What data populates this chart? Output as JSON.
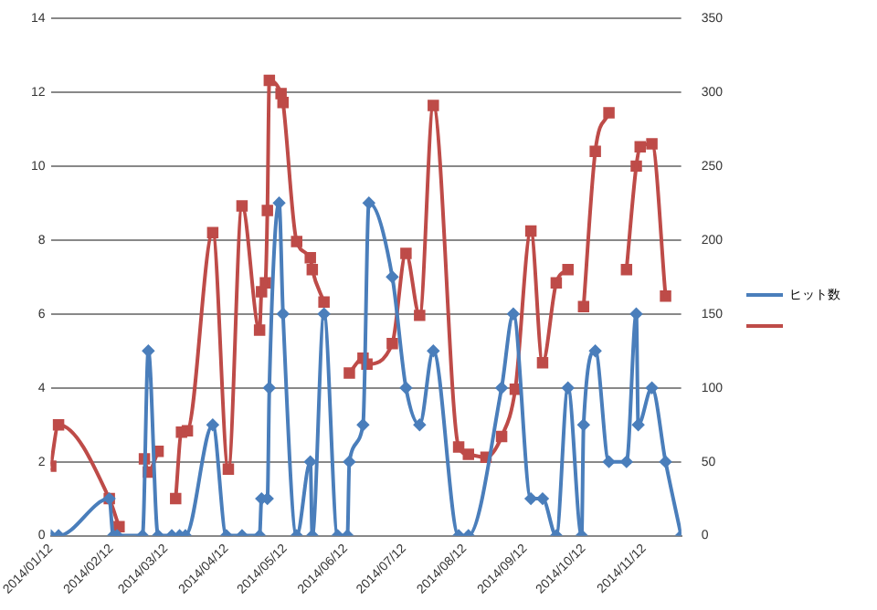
{
  "chart_data": {
    "type": "line",
    "xlim": [
      "2014-01-12",
      "2014-12-01"
    ],
    "xticks": [
      {
        "value": "2014-01-12",
        "label": "2014/01/12"
      },
      {
        "value": "2014-02-12",
        "label": "2014/02/12"
      },
      {
        "value": "2014-03-12",
        "label": "2014/03/12"
      },
      {
        "value": "2014-04-12",
        "label": "2014/04/12"
      },
      {
        "value": "2014-05-12",
        "label": "2014/05/12"
      },
      {
        "value": "2014-06-12",
        "label": "2014/06/12"
      },
      {
        "value": "2014-07-12",
        "label": "2014/07/12"
      },
      {
        "value": "2014-08-12",
        "label": "2014/08/12"
      },
      {
        "value": "2014-09-12",
        "label": "2014/09/12"
      },
      {
        "value": "2014-10-12",
        "label": "2014/10/12"
      },
      {
        "value": "2014-11-12",
        "label": "2014/11/12"
      }
    ],
    "ylim": [
      0,
      14
    ],
    "yticks": [
      0,
      2,
      4,
      6,
      8,
      10,
      12,
      14
    ],
    "y2lim": [
      0,
      350
    ],
    "y2ticks": [
      0,
      50,
      100,
      150,
      200,
      250,
      300,
      350
    ],
    "grid": "y",
    "legend": "right",
    "series": [
      {
        "name": "ヒット数",
        "color": "#4a7ebb",
        "marker": "diamond",
        "x": [
          "2014-01-12",
          "2014-01-16",
          "2014-02-11",
          "2014-02-13",
          "2014-02-15",
          "2014-02-28",
          "2014-03-03",
          "2014-03-08",
          "2014-03-15",
          "2014-03-19",
          "2014-03-22",
          "2014-04-05",
          "2014-04-12",
          "2014-04-20",
          "2014-04-29",
          "2014-04-30",
          "2014-05-03",
          "2014-05-04",
          "2014-05-09",
          "2014-05-11",
          "2014-05-18",
          "2014-05-25",
          "2014-05-26",
          "2014-06-01",
          "2014-06-08",
          "2014-06-13",
          "2014-06-14",
          "2014-06-21",
          "2014-06-24",
          "2014-07-06",
          "2014-07-13",
          "2014-07-20",
          "2014-07-27",
          "2014-08-09",
          "2014-08-14",
          "2014-08-31",
          "2014-09-06",
          "2014-09-15",
          "2014-09-21",
          "2014-09-28",
          "2014-10-04",
          "2014-10-11",
          "2014-10-12",
          "2014-10-18",
          "2014-10-25",
          "2014-11-03",
          "2014-11-08",
          "2014-11-09",
          "2014-11-16",
          "2014-11-23",
          "2014-12-01"
        ],
        "values": [
          0,
          0,
          1,
          0,
          0,
          0,
          5,
          0,
          0,
          0,
          0,
          3,
          0,
          0,
          0,
          1,
          1,
          4,
          9,
          6,
          0,
          2,
          0,
          6,
          0,
          0,
          2,
          3,
          9,
          7,
          4,
          3,
          5,
          0,
          0,
          4,
          6,
          1,
          1,
          0,
          4,
          0,
          3,
          5,
          2,
          2,
          6,
          3,
          4,
          2,
          0
        ]
      },
      {
        "color": "#be4b48",
        "marker": "square",
        "axis": "y2",
        "x": [
          "2014-01-12",
          "2014-01-16",
          "2014-02-11",
          "2014-02-16",
          "2014-02-22",
          "2014-03-01",
          "2014-03-03",
          "2014-03-08",
          "2014-03-12",
          "2014-03-17",
          "2014-03-20",
          "2014-03-23",
          "2014-04-05",
          "2014-04-13",
          "2014-04-20",
          "2014-04-29",
          "2014-04-30",
          "2014-05-02",
          "2014-05-03",
          "2014-05-04",
          "2014-05-10",
          "2014-05-11",
          "2014-05-18",
          "2014-05-25",
          "2014-05-26",
          "2014-06-01",
          "2014-06-08",
          "2014-06-14",
          "2014-06-21",
          "2014-06-23",
          "2014-07-06",
          "2014-07-13",
          "2014-07-20",
          "2014-07-27",
          "2014-08-09",
          "2014-08-14",
          "2014-08-23",
          "2014-08-31",
          "2014-09-07",
          "2014-09-15",
          "2014-09-21",
          "2014-09-28",
          "2014-10-04",
          "2014-10-08",
          "2014-10-12",
          "2014-10-18",
          "2014-10-25",
          "2014-10-29",
          "2014-11-03",
          "2014-11-08",
          "2014-11-10",
          "2014-11-16",
          "2014-11-23"
        ],
        "values": [
          47,
          75,
          25,
          6,
          null,
          52,
          43,
          57,
          null,
          25,
          70,
          71,
          205,
          45,
          223,
          139,
          165,
          171,
          220,
          308,
          299,
          293,
          199,
          188,
          180,
          158,
          null,
          110,
          120,
          116,
          130,
          191,
          149,
          291,
          60,
          55,
          53,
          67,
          99,
          206,
          117,
          171,
          180,
          null,
          155,
          260,
          286,
          null,
          180,
          250,
          263,
          265,
          162
        ]
      }
    ]
  }
}
